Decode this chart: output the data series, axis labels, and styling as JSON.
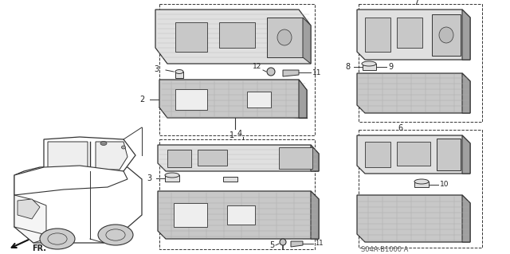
{
  "bg_color": "#ffffff",
  "diagram_code": "S04A-B1000 A",
  "line_color": "#333333",
  "fill_white": "#ffffff",
  "fill_light": "#e0e0e0",
  "fill_medium": "#c8c8c8",
  "fill_dark": "#a0a0a0",
  "fill_hatched": "#d8d8d8"
}
